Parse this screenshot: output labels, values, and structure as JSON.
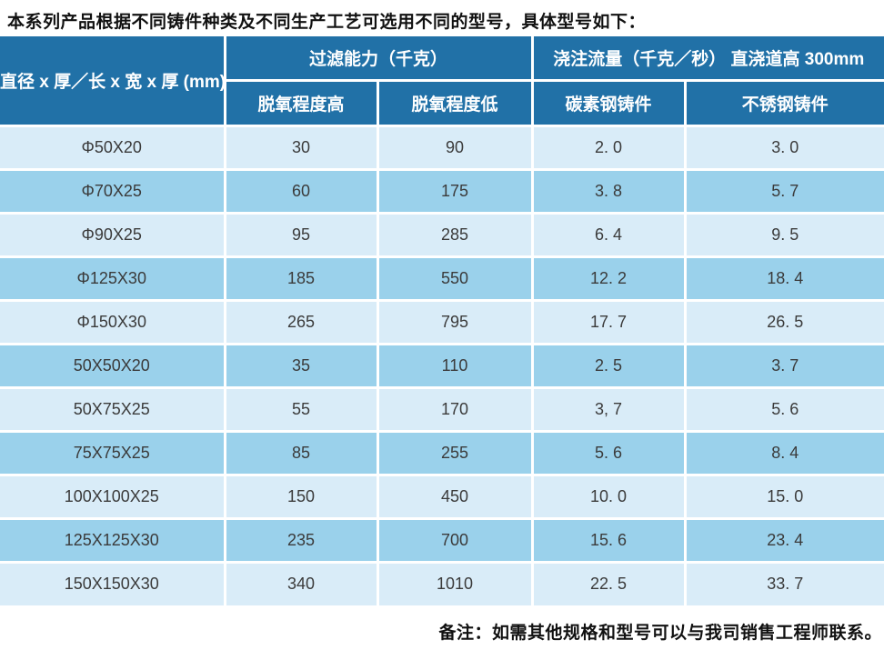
{
  "page": {
    "intro": "本系列产品根据不同铸件种类及不同生产工艺可选用不同的型号，具体型号如下：",
    "note": "备注：如需其他规格和型号可以与我司销售工程师联系。"
  },
  "colors": {
    "header_blue": "#2171a7",
    "row_light": "#d9ecf8",
    "row_dark": "#9ad1eb",
    "grid_line": "#ffffff",
    "data_text": "#3b3b3b"
  },
  "table": {
    "header": {
      "spec_column": "直径 x 厚／长 x 宽 x 厚 (mm)",
      "group_filter_capacity": "过滤能力（千克）",
      "group_pouring_rate": "浇注流量（千克／秒） 直浇道高 300mm",
      "sub_deox_high": "脱氧程度高",
      "sub_deox_low": "脱氧程度低",
      "sub_carbon_steel": "碳素钢铸件",
      "sub_stainless_steel": "不锈钢铸件"
    },
    "rows": [
      {
        "spec": "Φ50X20",
        "deox_high": "30",
        "deox_low": "90",
        "carbon": "2. 0",
        "stainless": "3. 0"
      },
      {
        "spec": "Φ70X25",
        "deox_high": "60",
        "deox_low": "175",
        "carbon": "3. 8",
        "stainless": "5. 7"
      },
      {
        "spec": "Φ90X25",
        "deox_high": "95",
        "deox_low": "285",
        "carbon": "6. 4",
        "stainless": "9. 5"
      },
      {
        "spec": "Φ125X30",
        "deox_high": "185",
        "deox_low": "550",
        "carbon": "12. 2",
        "stainless": "18. 4"
      },
      {
        "spec": "Φ150X30",
        "deox_high": "265",
        "deox_low": "795",
        "carbon": "17. 7",
        "stainless": "26. 5"
      },
      {
        "spec": "50X50X20",
        "deox_high": "35",
        "deox_low": "110",
        "carbon": "2. 5",
        "stainless": "3. 7"
      },
      {
        "spec": "50X75X25",
        "deox_high": "55",
        "deox_low": "170",
        "carbon": "3, 7",
        "stainless": "5. 6"
      },
      {
        "spec": "75X75X25",
        "deox_high": "85",
        "deox_low": "255",
        "carbon": "5. 6",
        "stainless": "8. 4"
      },
      {
        "spec": "100X100X25",
        "deox_high": "150",
        "deox_low": "450",
        "carbon": "10. 0",
        "stainless": "15. 0"
      },
      {
        "spec": "125X125X30",
        "deox_high": "235",
        "deox_low": "700",
        "carbon": "15. 6",
        "stainless": "23. 4"
      },
      {
        "spec": "150X150X30",
        "deox_high": "340",
        "deox_low": "1010",
        "carbon": "22. 5",
        "stainless": "33. 7"
      }
    ]
  }
}
